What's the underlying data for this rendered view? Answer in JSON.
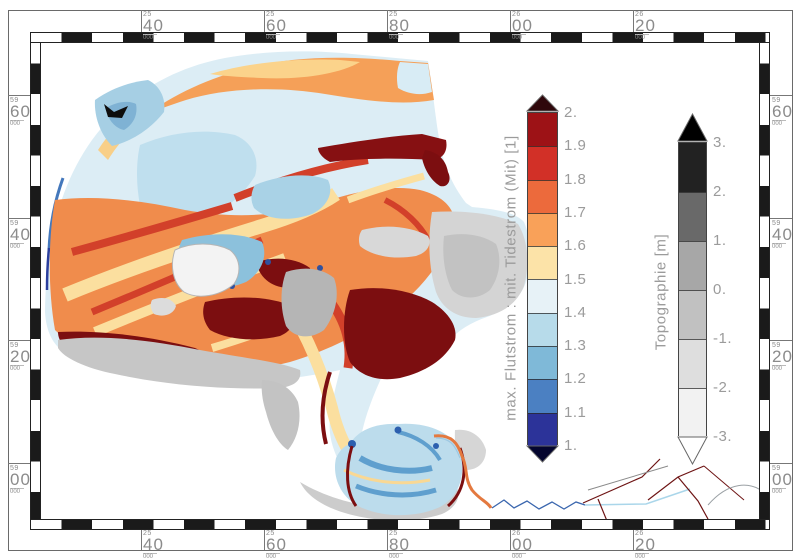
{
  "frame": {
    "label_color": "#8b8b8b",
    "checker_color": "#1a1a1a",
    "top_labels": [
      {
        "prefix": "25",
        "value": "40",
        "suffix": "000"
      },
      {
        "prefix": "25",
        "value": "60",
        "suffix": "000"
      },
      {
        "prefix": "25",
        "value": "80",
        "suffix": "000"
      },
      {
        "prefix": "26",
        "value": "00",
        "suffix": "000"
      },
      {
        "prefix": "26",
        "value": "20",
        "suffix": "000"
      }
    ],
    "bottom_labels": [
      {
        "prefix": "25",
        "value": "40",
        "suffix": "000"
      },
      {
        "prefix": "25",
        "value": "60",
        "suffix": "000"
      },
      {
        "prefix": "25",
        "value": "80",
        "suffix": "000"
      },
      {
        "prefix": "26",
        "value": "00",
        "suffix": "000"
      },
      {
        "prefix": "26",
        "value": "20",
        "suffix": "000"
      }
    ],
    "left_labels": [
      {
        "prefix": "59",
        "value": "60",
        "suffix": "000"
      },
      {
        "prefix": "59",
        "value": "40",
        "suffix": "000"
      },
      {
        "prefix": "59",
        "value": "20",
        "suffix": "000"
      },
      {
        "prefix": "59",
        "value": "00",
        "suffix": "000"
      }
    ],
    "right_labels": [
      {
        "prefix": "59",
        "value": "60",
        "suffix": "000"
      },
      {
        "prefix": "59",
        "value": "40",
        "suffix": "000"
      },
      {
        "prefix": "59",
        "value": "20",
        "suffix": "000"
      },
      {
        "prefix": "59",
        "value": "00",
        "suffix": "000"
      }
    ]
  },
  "colorbars": [
    {
      "id": "flutstrom",
      "title": "max. Flutstrom : mit. Tidestrom (Mit) [1]",
      "tick_labels": [
        "2.",
        "1.9",
        "1.8",
        "1.7",
        "1.6",
        "1.5",
        "1.4",
        "1.3",
        "1.2",
        "1.1",
        "1."
      ],
      "segment_colors_top_to_bottom": [
        "#9d1216",
        "#d23027",
        "#ec6a3c",
        "#f9a159",
        "#fce3a8",
        "#e7f2f7",
        "#b7dbea",
        "#7fb9d8",
        "#4b80c2",
        "#2c3399"
      ],
      "over_arrow_color": "#2f070b",
      "under_arrow_color": "#04052e"
    },
    {
      "id": "topographie",
      "title": "Topographie [m]",
      "tick_labels": [
        "3.",
        "2.",
        "1.",
        "0.",
        "-1.",
        "-2.",
        "-3."
      ],
      "segment_colors_top_to_bottom": [
        "#222222",
        "#696969",
        "#a7a7a7",
        "#c1c1c1",
        "#dedede",
        "#f2f2f2"
      ],
      "over_arrow_color": "#000000",
      "under_arrow_color": "#ffffff"
    }
  ]
}
